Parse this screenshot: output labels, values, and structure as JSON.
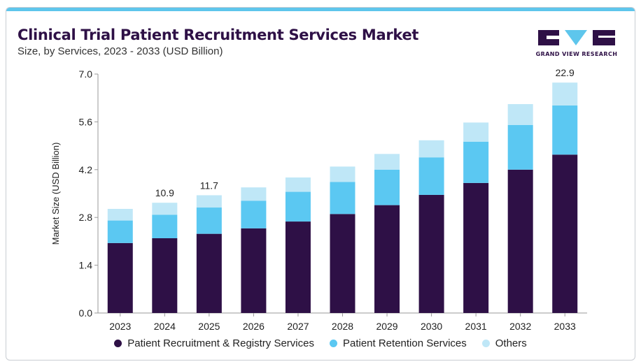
{
  "header": {
    "title": "Clinical Trial Patient Recruitment Services Market",
    "subtitle": "Size, by Services, 2023 - 2033 (USD Billion)"
  },
  "brand": {
    "name": "GRAND VIEW RESEARCH",
    "colors": {
      "dark": "#2e1046",
      "accent": "#5ec6ec"
    }
  },
  "colors": {
    "series": [
      "#2e1046",
      "#5bc8f2",
      "#bfe7f7"
    ],
    "top_bar": "#5ec6ec"
  },
  "chart_data": {
    "type": "bar",
    "stacked": true,
    "title": "Clinical Trial Patient Recruitment Services Market",
    "subtitle": "Size, by Services, 2023 - 2033 (USD Billion)",
    "xlabel": "",
    "ylabel": "Market Size (USD Billion)",
    "ylim": [
      0,
      7
    ],
    "yticks": [
      "0.0",
      "1.4",
      "2.8",
      "4.2",
      "5.6",
      "7.0"
    ],
    "grid": false,
    "legend_position": "bottom",
    "categories": [
      "2023",
      "2024",
      "2025",
      "2026",
      "2027",
      "2028",
      "2029",
      "2030",
      "2031",
      "2032",
      "2033"
    ],
    "series": [
      {
        "name": "Patient Recruitment & Registry Services",
        "values": [
          2.05,
          2.19,
          2.32,
          2.48,
          2.68,
          2.9,
          3.16,
          3.46,
          3.81,
          4.2,
          4.64
        ]
      },
      {
        "name": "Patient Retention Services",
        "values": [
          0.66,
          0.69,
          0.77,
          0.81,
          0.87,
          0.94,
          1.04,
          1.1,
          1.21,
          1.31,
          1.44
        ]
      },
      {
        "name": "Others",
        "values": [
          0.34,
          0.35,
          0.36,
          0.39,
          0.42,
          0.45,
          0.46,
          0.5,
          0.56,
          0.61,
          0.67
        ]
      }
    ],
    "annotations": [
      {
        "category": "2024",
        "label": "10.9"
      },
      {
        "category": "2025",
        "label": "11.7"
      },
      {
        "category": "2033",
        "label": "22.9"
      }
    ]
  }
}
